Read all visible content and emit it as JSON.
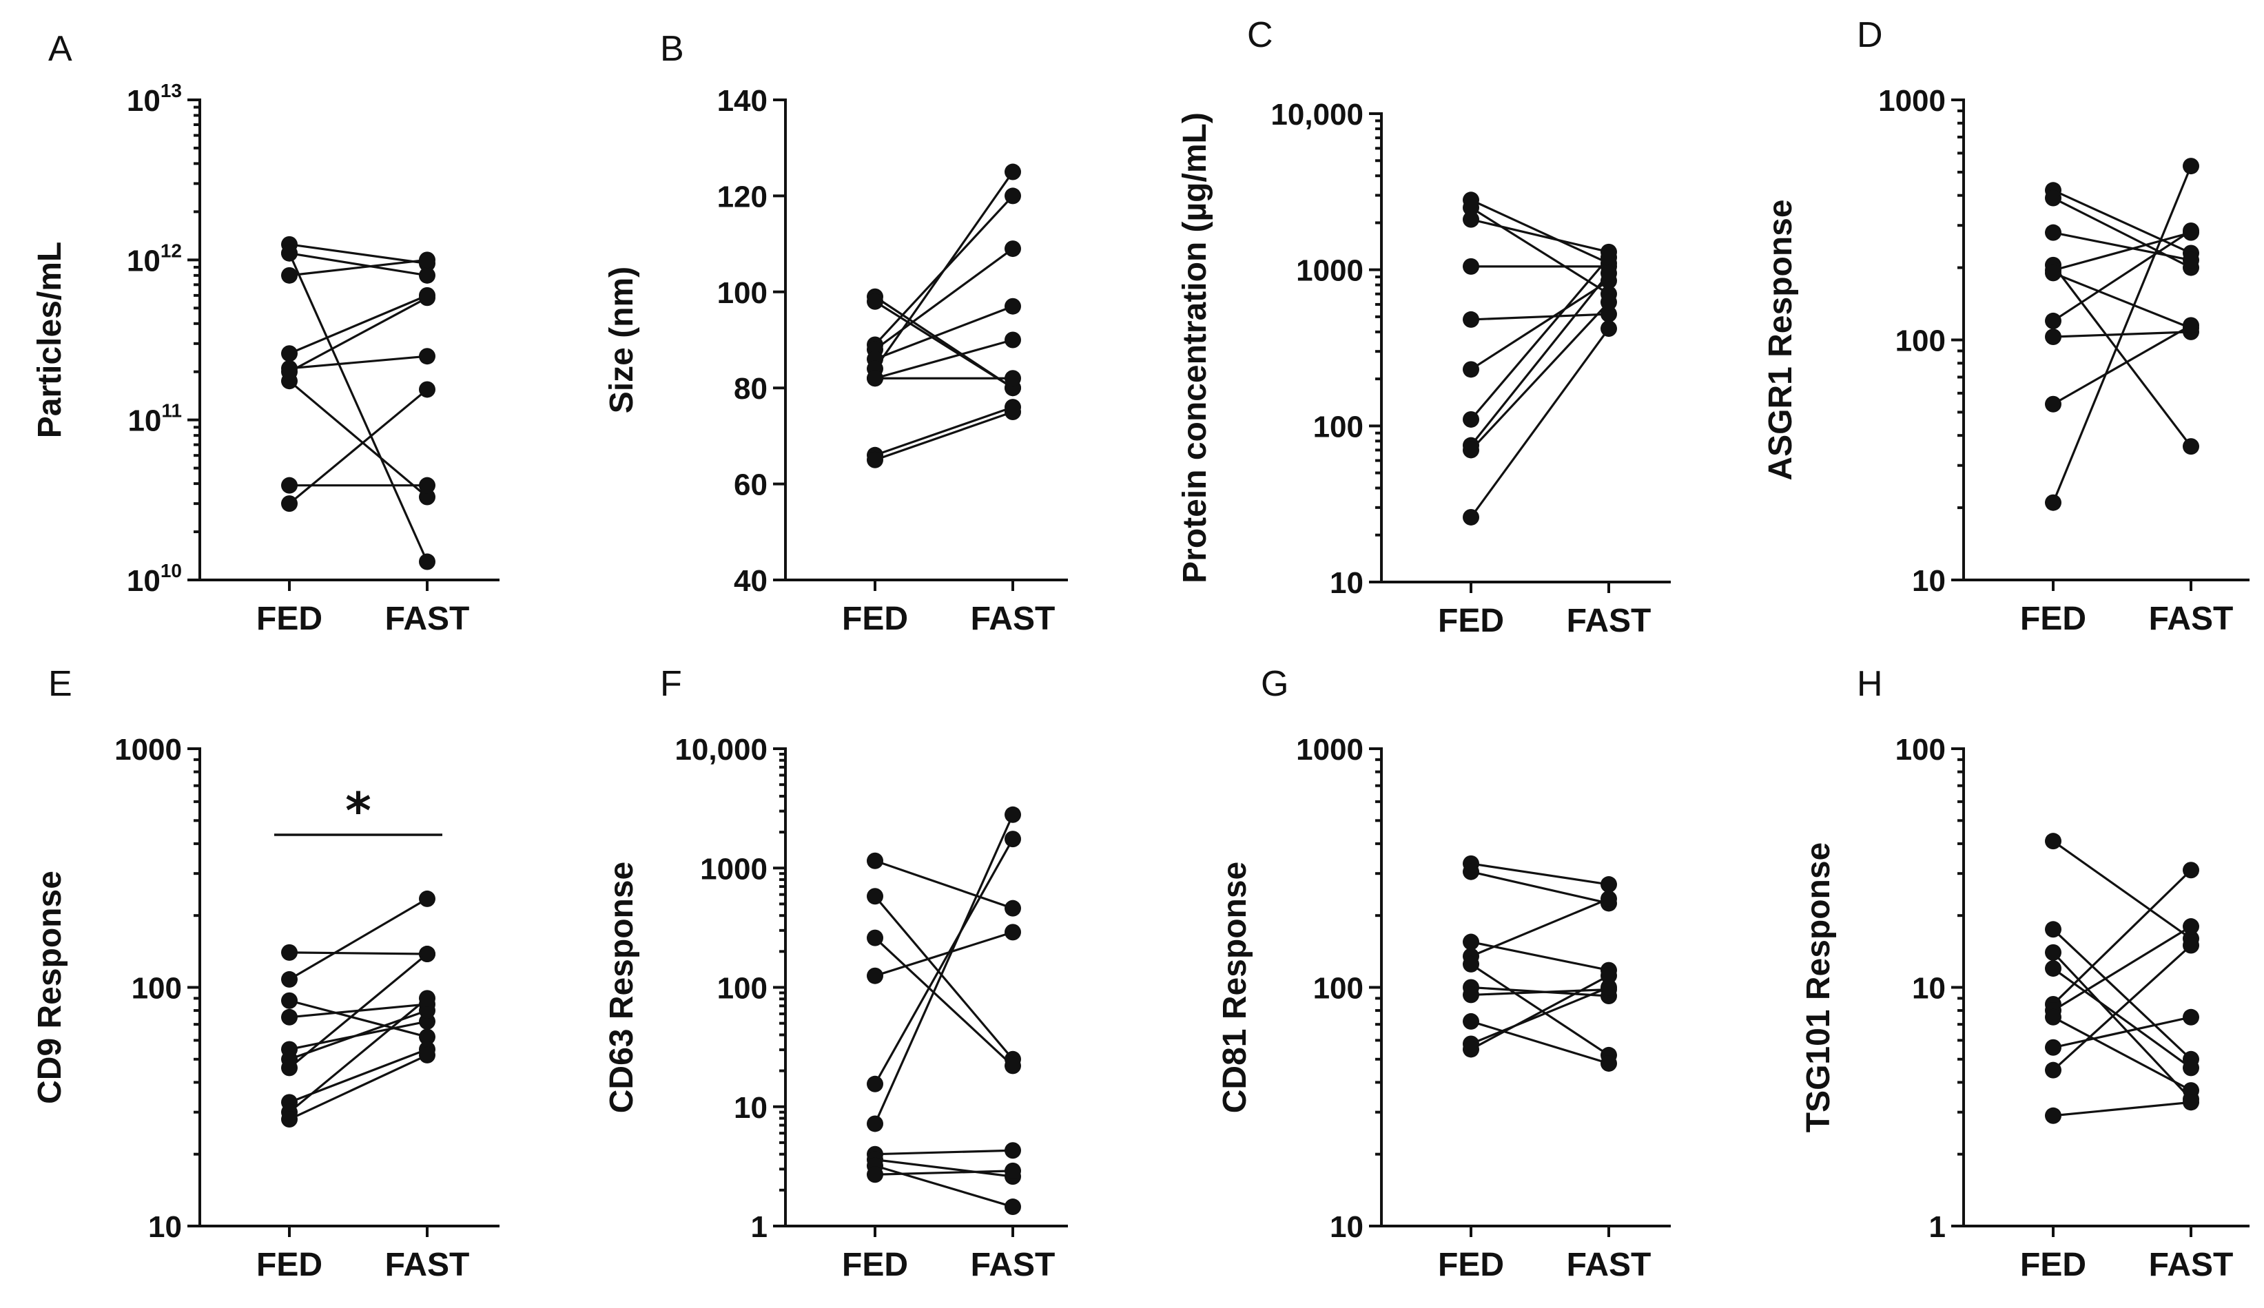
{
  "chart_data": [
    {
      "panel": "A",
      "type": "scatter",
      "paired": true,
      "title": "",
      "xlabel": "",
      "ylabel": "Particles/mL",
      "categories": [
        "FED",
        "FAST"
      ],
      "scale": "log",
      "ylim": [
        10000000000.0,
        10000000000000.0
      ],
      "yticks": [
        {
          "value": 10000000000.0,
          "base": "10",
          "exp": "10"
        },
        {
          "value": 100000000000.0,
          "base": "10",
          "exp": "11"
        },
        {
          "value": 1000000000000.0,
          "base": "10",
          "exp": "12"
        },
        {
          "value": 10000000000000.0,
          "base": "10",
          "exp": "13"
        }
      ],
      "pairs": [
        [
          1250000000000.0,
          950000000000.0
        ],
        [
          1100000000000.0,
          800000000000.0
        ],
        [
          800000000000.0,
          1000000000000.0
        ],
        [
          260000000000.0,
          600000000000.0
        ],
        [
          210000000000.0,
          250000000000.0
        ],
        [
          175000000000.0,
          33000000000.0
        ],
        [
          39000000000.0,
          39000000000.0
        ],
        [
          30000000000.0,
          155000000000.0
        ],
        [
          1100000000000.0,
          13000000000.0
        ],
        [
          200000000000.0,
          580000000000.0
        ]
      ]
    },
    {
      "panel": "B",
      "type": "scatter",
      "paired": true,
      "title": "",
      "xlabel": "",
      "ylabel": "Size (nm)",
      "categories": [
        "FED",
        "FAST"
      ],
      "scale": "linear",
      "ylim": [
        40,
        140
      ],
      "yticks": [
        {
          "value": 40,
          "text": "40"
        },
        {
          "value": 60,
          "text": "60"
        },
        {
          "value": 80,
          "text": "80"
        },
        {
          "value": 100,
          "text": "100"
        },
        {
          "value": 120,
          "text": "120"
        },
        {
          "value": 140,
          "text": "140"
        }
      ],
      "pairs": [
        [
          99,
          80
        ],
        [
          98,
          80
        ],
        [
          89,
          120
        ],
        [
          88,
          109
        ],
        [
          86,
          97
        ],
        [
          84,
          125
        ],
        [
          82,
          90
        ],
        [
          82,
          82
        ],
        [
          66,
          76
        ],
        [
          65,
          75
        ]
      ]
    },
    {
      "panel": "C",
      "type": "scatter",
      "paired": true,
      "title": "",
      "xlabel": "",
      "ylabel": "Protein concentration (µg/mL)",
      "categories": [
        "FED",
        "FAST"
      ],
      "scale": "log",
      "ylim": [
        10,
        10000
      ],
      "yticks": [
        {
          "value": 10,
          "text": "10"
        },
        {
          "value": 100,
          "text": "100"
        },
        {
          "value": 1000,
          "text": "1000"
        },
        {
          "value": 10000,
          "text": "10,000"
        }
      ],
      "pairs": [
        [
          2800,
          1100
        ],
        [
          2500,
          700
        ],
        [
          2100,
          1300
        ],
        [
          1050,
          1050
        ],
        [
          480,
          520
        ],
        [
          230,
          850
        ],
        [
          110,
          1200
        ],
        [
          75,
          950
        ],
        [
          70,
          620
        ],
        [
          26,
          420
        ]
      ]
    },
    {
      "panel": "D",
      "type": "scatter",
      "paired": true,
      "title": "",
      "xlabel": "",
      "ylabel": "ASGR1 Response",
      "categories": [
        "FED",
        "FAST"
      ],
      "scale": "log",
      "ylim": [
        10,
        1000
      ],
      "yticks": [
        {
          "value": 10,
          "text": "10"
        },
        {
          "value": 100,
          "text": "100"
        },
        {
          "value": 1000,
          "text": "1000"
        }
      ],
      "pairs": [
        [
          420,
          230
        ],
        [
          390,
          200
        ],
        [
          280,
          215
        ],
        [
          205,
          36
        ],
        [
          195,
          280
        ],
        [
          190,
          112
        ],
        [
          120,
          285
        ],
        [
          103,
          108
        ],
        [
          54,
          115
        ],
        [
          21,
          530
        ]
      ]
    },
    {
      "panel": "E",
      "type": "scatter",
      "paired": true,
      "title": "",
      "xlabel": "",
      "ylabel": "CD9 Response",
      "categories": [
        "FED",
        "FAST"
      ],
      "scale": "log",
      "ylim": [
        10,
        1000
      ],
      "yticks": [
        {
          "value": 10,
          "text": "10"
        },
        {
          "value": 100,
          "text": "100"
        },
        {
          "value": 1000,
          "text": "1000"
        }
      ],
      "annotation": "*",
      "pairs": [
        [
          140,
          138
        ],
        [
          108,
          235
        ],
        [
          88,
          62
        ],
        [
          75,
          85
        ],
        [
          55,
          72
        ],
        [
          50,
          80
        ],
        [
          46,
          138
        ],
        [
          33,
          55
        ],
        [
          30,
          90
        ],
        [
          28,
          52
        ]
      ]
    },
    {
      "panel": "F",
      "type": "scatter",
      "paired": true,
      "title": "",
      "xlabel": "",
      "ylabel": "CD63 Response",
      "categories": [
        "FED",
        "FAST"
      ],
      "scale": "log",
      "ylim": [
        1,
        10000
      ],
      "yticks": [
        {
          "value": 1,
          "text": "1"
        },
        {
          "value": 10,
          "text": "10"
        },
        {
          "value": 100,
          "text": "100"
        },
        {
          "value": 1000,
          "text": "1000"
        },
        {
          "value": 10000,
          "text": "10,000"
        }
      ],
      "pairs": [
        [
          1150,
          460
        ],
        [
          580,
          25
        ],
        [
          260,
          22
        ],
        [
          125,
          290
        ],
        [
          15.5,
          1750
        ],
        [
          7.2,
          2800
        ],
        [
          4.0,
          4.3
        ],
        [
          3.6,
          2.6
        ],
        [
          3.2,
          1.45
        ],
        [
          2.7,
          2.9
        ]
      ]
    },
    {
      "panel": "G",
      "type": "scatter",
      "paired": true,
      "title": "",
      "xlabel": "",
      "ylabel": "CD81 Response",
      "categories": [
        "FED",
        "FAST"
      ],
      "scale": "log",
      "ylim": [
        10,
        1000
      ],
      "yticks": [
        {
          "value": 10,
          "text": "10"
        },
        {
          "value": 100,
          "text": "100"
        },
        {
          "value": 1000,
          "text": "1000"
        }
      ],
      "pairs": [
        [
          330,
          270
        ],
        [
          305,
          225
        ],
        [
          155,
          118
        ],
        [
          135,
          235
        ],
        [
          125,
          52
        ],
        [
          100,
          92
        ],
        [
          93,
          98
        ],
        [
          72,
          48
        ],
        [
          58,
          100
        ],
        [
          55,
          112
        ]
      ]
    },
    {
      "panel": "H",
      "type": "scatter",
      "paired": true,
      "title": "",
      "xlabel": "",
      "ylabel": "TSG101 Response",
      "categories": [
        "FED",
        "FAST"
      ],
      "scale": "log",
      "ylim": [
        1,
        100
      ],
      "yticks": [
        {
          "value": 1,
          "text": "1"
        },
        {
          "value": 10,
          "text": "10"
        },
        {
          "value": 100,
          "text": "100"
        }
      ],
      "pairs": [
        [
          41,
          16
        ],
        [
          17.5,
          5.0
        ],
        [
          14,
          3.4
        ],
        [
          12,
          4.6
        ],
        [
          8.5,
          31
        ],
        [
          8.0,
          18
        ],
        [
          7.5,
          3.7
        ],
        [
          5.6,
          7.5
        ],
        [
          4.5,
          15
        ],
        [
          2.9,
          3.3
        ]
      ]
    }
  ]
}
